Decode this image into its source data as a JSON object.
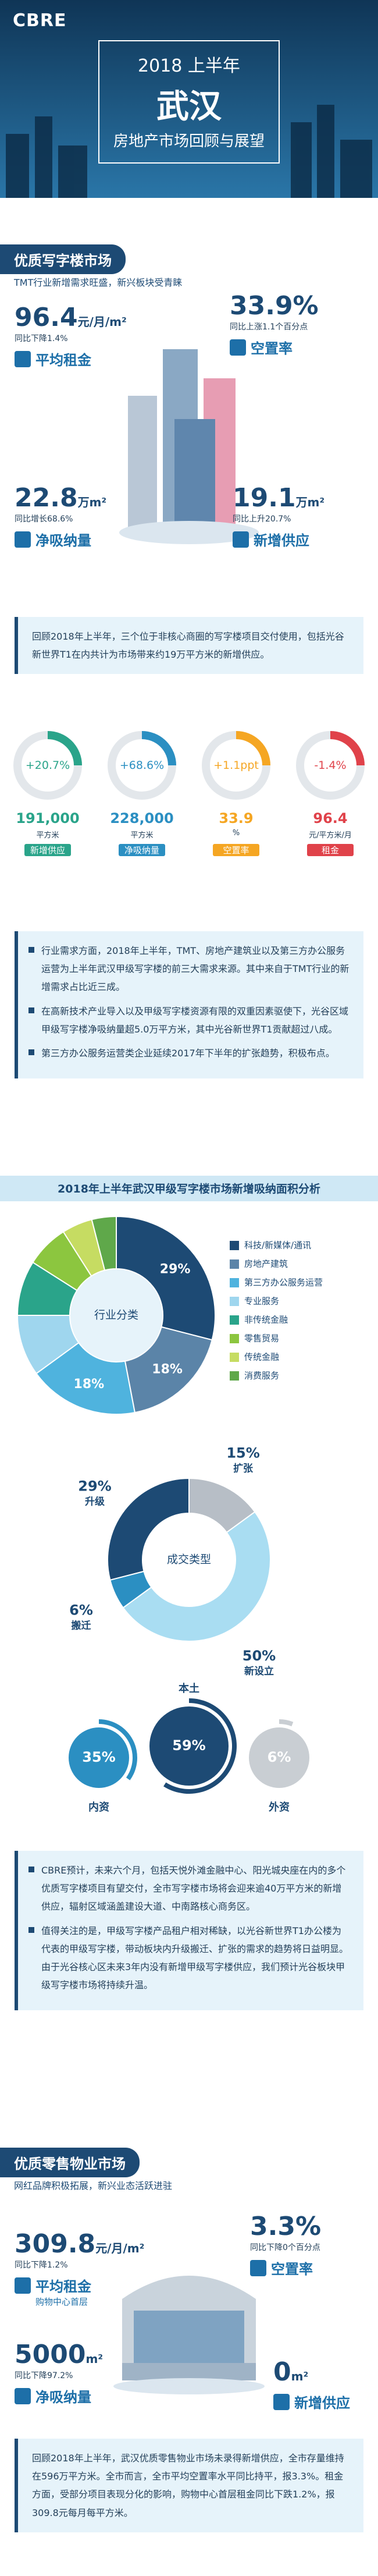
{
  "header": {
    "logo": "CBRE",
    "year": "2018 上半年",
    "city": "武汉",
    "subtitle": "房地产市场回顾与展望"
  },
  "office": {
    "title": "优质写字楼市场",
    "subtitle": "TMT行业新增需求旺盛，新兴板块受青睐",
    "kpis": [
      {
        "value": "96.4",
        "unit": "元/月/m²",
        "change": "同比下降1.4%",
        "label": "平均租金"
      },
      {
        "value": "33.9%",
        "change": "同比上涨1.1个百分点",
        "label": "空置率"
      },
      {
        "value": "22.8",
        "unit": "万m²",
        "change": "同比增长68.6%",
        "label": "净吸纳量"
      },
      {
        "value": "19.1",
        "unit": "万m²",
        "change": "同比上升20.7%",
        "label": "新增供应"
      }
    ],
    "summary": "回顾2018年上半年，三个位于非核心商圈的写字楼项目交付使用，包括光谷新世界T1在内共计为市场带来约19万平方米的新增供应。",
    "rings": [
      {
        "change": "+20.7%",
        "value": "191,000",
        "unit": "平方米",
        "label": "新增供应"
      },
      {
        "change": "+68.6%",
        "value": "228,000",
        "unit": "平方米",
        "label": "净吸纳量"
      },
      {
        "change": "+1.1ppt",
        "value": "33.9",
        "unit": "%",
        "label": "空置率"
      },
      {
        "change": "-1.4%",
        "value": "96.4",
        "unit": "元/平方米/月",
        "label": "租金"
      }
    ],
    "bullets": [
      "行业需求方面，2018年上半年，TMT、房地产建筑业以及第三方办公服务运营为上半年武汉甲级写字楼的前三大需求来源。其中来自于TMT行业的新增需求占比近三成。",
      "在高新技术产业导入以及甲级写字楼资源有限的双重因素驱使下，光谷区域甲级写字楼净吸纳量超5.0万平方米，其中光谷新世界T1贡献超过八成。",
      "第三方办公服务运营类企业延续2017年下半年的扩张趋势，积极布点。"
    ],
    "analysis": {
      "title": "2018年上半年武汉甲级写字楼市场新增吸纳面积分析",
      "industry": {
        "center": "行业分类",
        "categories": [
          "科技/新媒体/通讯",
          "房地产建筑",
          "第三方办公服务运营",
          "专业服务",
          "非传统金融",
          "零售贸易",
          "传统金融",
          "消费服务"
        ],
        "values": [
          29,
          18,
          18,
          10,
          9,
          7,
          5,
          4
        ],
        "value_labels": [
          "29%",
          "18%",
          "18%",
          null,
          null,
          null,
          null,
          null
        ],
        "colors": [
          "#1d4a74",
          "#5b84a8",
          "#4fb3de",
          "#9fd6ee",
          "#2aa48a",
          "#8cc63f",
          "#c6dc62",
          "#5fa84a"
        ]
      },
      "deal": {
        "center": "成交类型",
        "categories": [
          "升级",
          "扩张",
          "新设立",
          "搬迁"
        ],
        "values": [
          29,
          15,
          50,
          6
        ],
        "value_labels": [
          "29%",
          "15%",
          "50%",
          "6%"
        ],
        "colors": [
          "#1d4a74",
          "#b7bec6",
          "#a9ddf2",
          "#2b8fc2"
        ]
      },
      "origin": {
        "categories": [
          "内资",
          "本土",
          "外资"
        ],
        "values": [
          35,
          59,
          6
        ],
        "value_labels": [
          "35%",
          "59%",
          "6%"
        ],
        "colors": [
          "#2b8fc2",
          "#1d4a74",
          "#c9ced3"
        ]
      }
    },
    "outlook": [
      "CBRE预计，未来六个月，包括天悦外滩金融中心、阳光城央座在内的多个优质写字楼项目有望交付，全市写字楼市场将会迎来逾40万平方米的新增供应，辐射区域涵盖建设大道、中南路核心商务区。",
      "值得关注的是，甲级写字楼产品租户相对稀缺，以光谷新世界T1办公楼为代表的甲级写字楼，带动板块内升级搬迁、扩张的需求的趋势将日益明显。由于光谷核心区未来3年内没有新增甲级写字楼供应，我们预计光谷板块甲级写字楼市场将持续升温。"
    ]
  },
  "retail": {
    "title": "优质零售物业市场",
    "subtitle": "网红品牌积极拓展，新兴业态活跃进驻",
    "kpis": [
      {
        "value": "309.8",
        "unit": "元/月/m²",
        "change": "同比下降1.2%",
        "label": "平均租金",
        "sub": "购物中心首层"
      },
      {
        "value": "3.3%",
        "change": "同比下降0个百分点",
        "label": "空置率"
      },
      {
        "value": "5000",
        "unit": "m²",
        "change": "同比下降97.2%",
        "label": "净吸纳量"
      },
      {
        "value": "0",
        "unit": "m²",
        "label": "新增供应"
      }
    ],
    "summary": "回顾2018年上半年，武汉优质零售物业市场未录得新增供应，全市存量维持在596万平方米。全市而言，全市平均空置率水平同比持平，报3.3%。租金方面，受部分项目表现分化的影响，购物中心首层租金同比下跌1.2%，报309.8元每月每平方米。"
  }
}
